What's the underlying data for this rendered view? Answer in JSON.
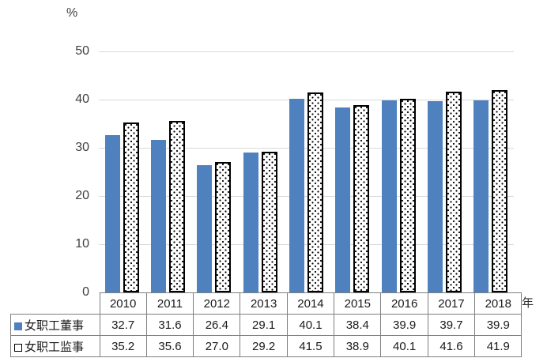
{
  "chart_data": {
    "type": "bar",
    "title": "",
    "y_unit_label": "%",
    "x_unit_label": "年",
    "categories": [
      "2010",
      "2011",
      "2012",
      "2013",
      "2014",
      "2015",
      "2016",
      "2017",
      "2018"
    ],
    "series": [
      {
        "name": "女职工董事",
        "style": "solid",
        "color": "#4E81BD",
        "values": [
          32.7,
          31.6,
          26.4,
          29.1,
          40.1,
          38.4,
          39.9,
          39.7,
          39.9
        ]
      },
      {
        "name": "女职工监事",
        "style": "dotted",
        "color": "#FFFFFF",
        "border_color": "#000000",
        "values": [
          35.2,
          35.6,
          27.0,
          29.2,
          41.5,
          38.9,
          40.1,
          41.6,
          41.9
        ]
      }
    ],
    "ylim": [
      0,
      50
    ],
    "yticks": [
      0,
      10,
      20,
      30,
      40,
      50
    ],
    "grid": "horizontal",
    "legend_position": "table-left",
    "data_table_shown": true,
    "colors": {
      "bar_blue": "#4E81BD",
      "gridline": "#D9D9D9",
      "axis_text": "#404040",
      "table_border": "#7F7F7F",
      "table_text": "#1A1A1A",
      "background": "#FFFFFF"
    }
  }
}
